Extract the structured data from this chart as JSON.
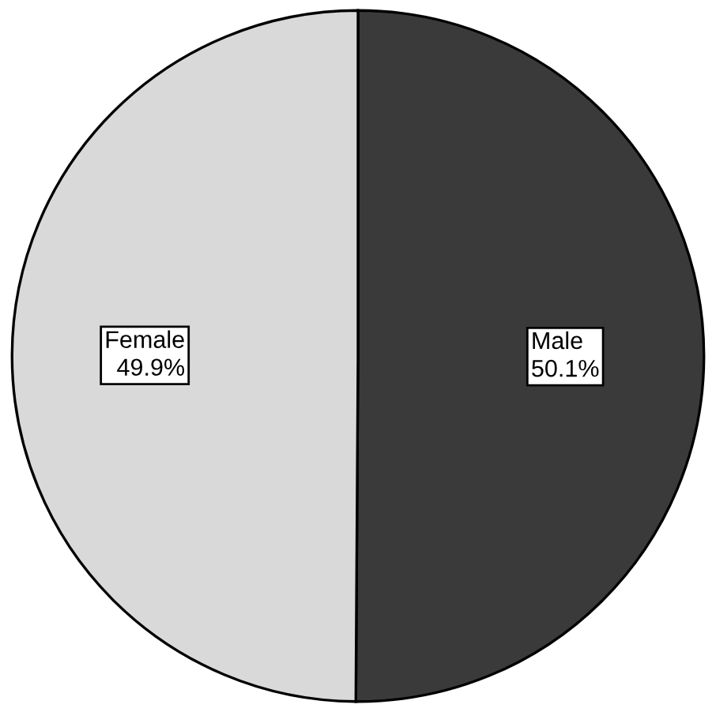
{
  "chart_data": {
    "type": "pie",
    "categories": [
      "Male",
      "Female"
    ],
    "values": [
      50.1,
      49.9
    ],
    "colors": [
      "#3a3a3a",
      "#d9d9d9"
    ],
    "value_labels": [
      "50.1%",
      "49.9%"
    ]
  }
}
